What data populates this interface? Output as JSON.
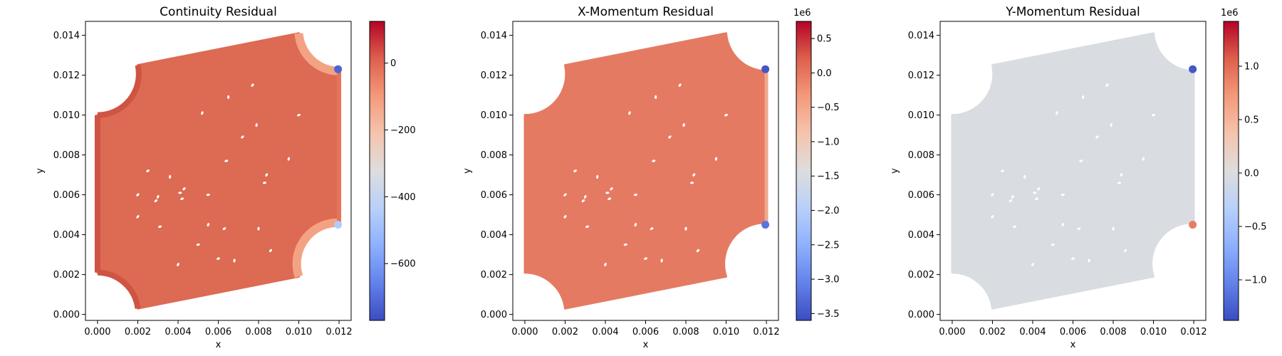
{
  "chart_data": [
    {
      "type": "scatter",
      "title": "Continuity Residual",
      "xlabel": "x",
      "ylabel": "y",
      "xlim": [
        -0.0006,
        0.0126
      ],
      "ylim": [
        -0.0003,
        0.0147
      ],
      "xticks": [
        "0.000",
        "0.002",
        "0.004",
        "0.006",
        "0.008",
        "0.010",
        "0.012"
      ],
      "yticks": [
        "0.000",
        "0.002",
        "0.004",
        "0.006",
        "0.008",
        "0.010",
        "0.012",
        "0.014"
      ],
      "colorbar": {
        "ticks": [
          "0",
          "−200",
          "−400",
          "−600"
        ],
        "tick_values": [
          0,
          -200,
          -400,
          -600
        ],
        "min": -770,
        "max": 125,
        "multiplier": ""
      },
      "body_color": "#dd6a52",
      "edge_colors": {
        "arcs": "#f4a284",
        "left": "#cf5444",
        "corners": "#e5745c"
      },
      "hotspots": [
        {
          "x": 0.01195,
          "y": 0.0123,
          "value": -720
        },
        {
          "x": 0.01195,
          "y": 0.0045,
          "value": -450
        }
      ],
      "colormap": "coolwarm"
    },
    {
      "type": "scatter",
      "title": "X-Momentum Residual",
      "xlabel": "x",
      "ylabel": "y",
      "xlim": [
        -0.0006,
        0.0126
      ],
      "ylim": [
        -0.0003,
        0.0147
      ],
      "xticks": [
        "0.000",
        "0.002",
        "0.004",
        "0.006",
        "0.008",
        "0.010",
        "0.012"
      ],
      "yticks": [
        "0.000",
        "0.002",
        "0.004",
        "0.006",
        "0.008",
        "0.010",
        "0.012",
        "0.014"
      ],
      "colorbar": {
        "ticks": [
          "0.5",
          "0.0",
          "−0.5",
          "−1.0",
          "−1.5",
          "−2.0",
          "−2.5",
          "−3.0",
          "−3.5"
        ],
        "tick_values": [
          0.5,
          0.0,
          -0.5,
          -1.0,
          -1.5,
          -2.0,
          -2.5,
          -3.0,
          -3.5
        ],
        "min": -3.6,
        "max": 0.75,
        "multiplier": "1e6"
      },
      "body_color": "#e57a62",
      "edge_colors": {
        "arcs": "#e57a62",
        "left": "#e57a62",
        "corners": "#e57a62"
      },
      "hotspots": [
        {
          "x": 0.01195,
          "y": 0.0123,
          "value": -3.5
        },
        {
          "x": 0.01195,
          "y": 0.0045,
          "value": -3.2
        }
      ],
      "colormap": "coolwarm"
    },
    {
      "type": "scatter",
      "title": "Y-Momentum Residual",
      "xlabel": "x",
      "ylabel": "y",
      "xlim": [
        -0.0006,
        0.0126
      ],
      "ylim": [
        -0.0003,
        0.0147
      ],
      "xticks": [
        "0.000",
        "0.002",
        "0.004",
        "0.006",
        "0.008",
        "0.010",
        "0.012"
      ],
      "yticks": [
        "0.000",
        "0.002",
        "0.004",
        "0.006",
        "0.008",
        "0.010",
        "0.012",
        "0.014"
      ],
      "colorbar": {
        "ticks": [
          "1.0",
          "0.5",
          "0.0",
          "−0.5",
          "−1.0"
        ],
        "tick_values": [
          1.0,
          0.5,
          0.0,
          -0.5,
          -1.0
        ],
        "min": -1.38,
        "max": 1.42,
        "multiplier": "1e6"
      },
      "body_color": "#d9dce1",
      "edge_colors": {
        "arcs": "#d9dce1",
        "left": "#d9dce1",
        "corners": "#d9dce1"
      },
      "hotspots": [
        {
          "x": 0.01195,
          "y": 0.0123,
          "value": -1.3
        },
        {
          "x": 0.01195,
          "y": 0.0045,
          "value": 0.9
        }
      ],
      "colormap": "coolwarm"
    }
  ]
}
